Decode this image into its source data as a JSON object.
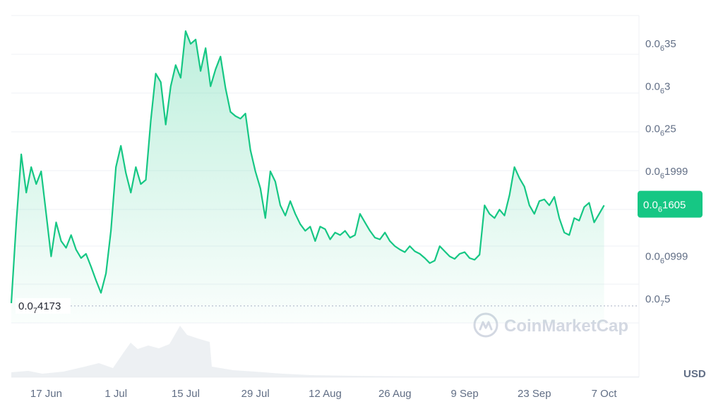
{
  "chart_data": {
    "type": "area",
    "title": "",
    "xlabel": "",
    "ylabel": "",
    "currency": "USD",
    "watermark": "CoinMarketCap",
    "x_tick_labels": [
      "17 Jun",
      "1 Jul",
      "15 Jul",
      "29 Jul",
      "12 Aug",
      "26 Aug",
      "9 Sep",
      "23 Sep",
      "7 Oct"
    ],
    "y_ticks": [
      {
        "value": 5e-08,
        "prefix": "0.0",
        "zeros": "7",
        "digits": "5"
      },
      {
        "value": 9.99e-08,
        "prefix": "0.0",
        "zeros": "6",
        "digits": "0999"
      },
      {
        "value": 1.999e-07,
        "prefix": "0.0",
        "zeros": "6",
        "digits": "1999"
      },
      {
        "value": 2.5e-07,
        "prefix": "0.0",
        "zeros": "6",
        "digits": "25"
      },
      {
        "value": 3e-07,
        "prefix": "0.0",
        "zeros": "6",
        "digits": "3"
      },
      {
        "value": 3.5e-07,
        "prefix": "0.0",
        "zeros": "6",
        "digits": "35"
      }
    ],
    "ylim": [
      2.17e-08,
      3.833e-07
    ],
    "xlim": [
      "2024-06-10",
      "2024-10-14"
    ],
    "current_price": {
      "value": 1.605e-07,
      "prefix": "0.0",
      "zeros": "6",
      "digits": "1605"
    },
    "low_marker": {
      "value": 4.173e-08,
      "prefix": "0.0",
      "zeros": "7",
      "digits": "4173"
    },
    "line_color": "#16c784",
    "fill_color": "#16c784",
    "grid": true,
    "unit_scale_note": "price values listed in units of 1e-9 USD",
    "series": [
      {
        "values_scale": 1e-09,
        "points": [
          [
            "2024-06-10",
            45
          ],
          [
            "2024-06-11",
            140
          ],
          [
            "2024-06-12",
            220
          ],
          [
            "2024-06-13",
            175
          ],
          [
            "2024-06-14",
            205
          ],
          [
            "2024-06-15",
            185
          ],
          [
            "2024-06-16",
            200
          ],
          [
            "2024-06-17",
            150
          ],
          [
            "2024-06-18",
            100
          ],
          [
            "2024-06-19",
            140
          ],
          [
            "2024-06-20",
            118
          ],
          [
            "2024-06-21",
            110
          ],
          [
            "2024-06-22",
            125
          ],
          [
            "2024-06-23",
            108
          ],
          [
            "2024-06-24",
            98
          ],
          [
            "2024-06-25",
            103
          ],
          [
            "2024-06-26",
            88
          ],
          [
            "2024-06-27",
            72
          ],
          [
            "2024-06-28",
            57
          ],
          [
            "2024-06-29",
            80
          ],
          [
            "2024-06-30",
            130
          ],
          [
            "2024-07-01",
            205
          ],
          [
            "2024-07-02",
            230
          ],
          [
            "2024-07-03",
            198
          ],
          [
            "2024-07-04",
            175
          ],
          [
            "2024-07-05",
            205
          ],
          [
            "2024-07-06",
            185
          ],
          [
            "2024-07-07",
            190
          ],
          [
            "2024-07-08",
            260
          ],
          [
            "2024-07-09",
            315
          ],
          [
            "2024-07-10",
            305
          ],
          [
            "2024-07-11",
            255
          ],
          [
            "2024-07-12",
            300
          ],
          [
            "2024-07-13",
            325
          ],
          [
            "2024-07-14",
            310
          ],
          [
            "2024-07-15",
            365
          ],
          [
            "2024-07-16",
            350
          ],
          [
            "2024-07-17",
            355
          ],
          [
            "2024-07-18",
            318
          ],
          [
            "2024-07-19",
            345
          ],
          [
            "2024-07-20",
            300
          ],
          [
            "2024-07-21",
            320
          ],
          [
            "2024-07-22",
            335
          ],
          [
            "2024-07-23",
            298
          ],
          [
            "2024-07-24",
            270
          ],
          [
            "2024-07-25",
            265
          ],
          [
            "2024-07-26",
            262
          ],
          [
            "2024-07-27",
            268
          ],
          [
            "2024-07-28",
            225
          ],
          [
            "2024-07-29",
            200
          ],
          [
            "2024-07-30",
            180
          ],
          [
            "2024-07-31",
            145
          ],
          [
            "2024-08-01",
            200
          ],
          [
            "2024-08-02",
            188
          ],
          [
            "2024-08-03",
            160
          ],
          [
            "2024-08-04",
            148
          ],
          [
            "2024-08-05",
            165
          ],
          [
            "2024-08-06",
            150
          ],
          [
            "2024-08-07",
            138
          ],
          [
            "2024-08-08",
            130
          ],
          [
            "2024-08-09",
            135
          ],
          [
            "2024-08-10",
            118
          ],
          [
            "2024-08-11",
            135
          ],
          [
            "2024-08-12",
            132
          ],
          [
            "2024-08-13",
            120
          ],
          [
            "2024-08-14",
            128
          ],
          [
            "2024-08-15",
            125
          ],
          [
            "2024-08-16",
            130
          ],
          [
            "2024-08-17",
            122
          ],
          [
            "2024-08-18",
            125
          ],
          [
            "2024-08-19",
            150
          ],
          [
            "2024-08-20",
            140
          ],
          [
            "2024-08-21",
            130
          ],
          [
            "2024-08-22",
            122
          ],
          [
            "2024-08-23",
            120
          ],
          [
            "2024-08-24",
            128
          ],
          [
            "2024-08-25",
            118
          ],
          [
            "2024-08-26",
            112
          ],
          [
            "2024-08-27",
            108
          ],
          [
            "2024-08-28",
            105
          ],
          [
            "2024-08-29",
            112
          ],
          [
            "2024-08-30",
            106
          ],
          [
            "2024-08-31",
            103
          ],
          [
            "2024-09-01",
            98
          ],
          [
            "2024-09-02",
            92
          ],
          [
            "2024-09-03",
            95
          ],
          [
            "2024-09-04",
            112
          ],
          [
            "2024-09-05",
            106
          ],
          [
            "2024-09-06",
            100
          ],
          [
            "2024-09-07",
            97
          ],
          [
            "2024-09-08",
            103
          ],
          [
            "2024-09-09",
            105
          ],
          [
            "2024-09-10",
            98
          ],
          [
            "2024-09-11",
            96
          ],
          [
            "2024-09-12",
            102
          ],
          [
            "2024-09-13",
            160
          ],
          [
            "2024-09-14",
            150
          ],
          [
            "2024-09-15",
            145
          ],
          [
            "2024-09-16",
            155
          ],
          [
            "2024-09-17",
            148
          ],
          [
            "2024-09-18",
            172
          ],
          [
            "2024-09-19",
            205
          ],
          [
            "2024-09-20",
            192
          ],
          [
            "2024-09-21",
            182
          ],
          [
            "2024-09-22",
            160
          ],
          [
            "2024-09-23",
            150
          ],
          [
            "2024-09-24",
            165
          ],
          [
            "2024-09-25",
            167
          ],
          [
            "2024-09-26",
            160
          ],
          [
            "2024-09-27",
            170
          ],
          [
            "2024-09-28",
            145
          ],
          [
            "2024-09-29",
            128
          ],
          [
            "2024-09-30",
            125
          ],
          [
            "2024-10-01",
            145
          ],
          [
            "2024-10-02",
            142
          ],
          [
            "2024-10-03",
            158
          ],
          [
            "2024-10-04",
            163
          ],
          [
            "2024-10-05",
            140
          ],
          [
            "2024-10-06",
            150
          ],
          [
            "2024-10-07",
            160
          ]
        ]
      }
    ]
  }
}
